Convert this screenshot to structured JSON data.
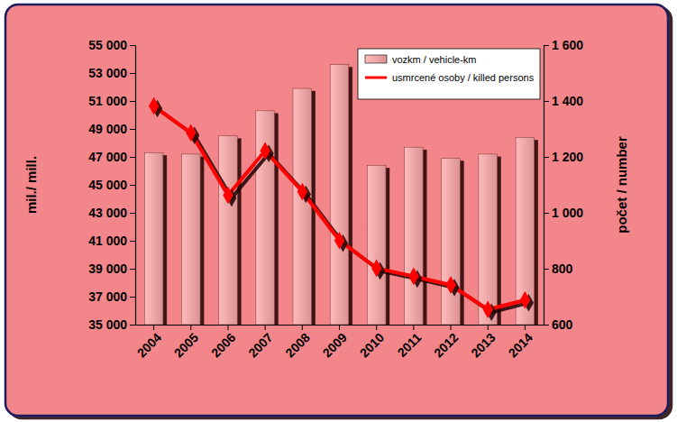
{
  "chart_data": {
    "type": "bar",
    "categories": [
      "2004",
      "2005",
      "2006",
      "2007",
      "2008",
      "2009",
      "2010",
      "2011",
      "2012",
      "2013",
      "2014"
    ],
    "series": [
      {
        "name": "vozkm / vehicle-km",
        "type": "bar",
        "color": "#f4a3a3",
        "values": [
          47300,
          47200,
          48500,
          50300,
          51900,
          53600,
          46400,
          47700,
          46900,
          47200,
          48400
        ]
      },
      {
        "name": "usmrcené osoby / killed persons",
        "type": "line",
        "color": "#ff0000",
        "marker": "diamond",
        "axis": "y2",
        "values": [
          1382,
          1286,
          1063,
          1222,
          1076,
          901,
          802,
          773,
          742,
          654,
          688
        ]
      }
    ],
    "ylabel": "mil./ mill.",
    "y2label": "počet / number",
    "ylim": [
      35000,
      55000
    ],
    "yticks": [
      {
        "value": 35000,
        "label": "35 000"
      },
      {
        "value": 37000,
        "label": "37 000"
      },
      {
        "value": 39000,
        "label": "39 000"
      },
      {
        "value": 41000,
        "label": "41 000"
      },
      {
        "value": 43000,
        "label": "43 000"
      },
      {
        "value": 45000,
        "label": "45 000"
      },
      {
        "value": 47000,
        "label": "47 000"
      },
      {
        "value": 49000,
        "label": "49 000"
      },
      {
        "value": 51000,
        "label": "51 000"
      },
      {
        "value": 53000,
        "label": "53 000"
      },
      {
        "value": 55000,
        "label": "55 000"
      }
    ],
    "y2lim": [
      600,
      1600
    ],
    "y2ticks": [
      600,
      800,
      {
        "value": 1000,
        "label": "1 000"
      },
      {
        "value": 1200,
        "label": "1 200"
      },
      {
        "value": 1400,
        "label": "1 400"
      },
      {
        "value": 1600,
        "label": "1 600"
      }
    ],
    "legend": "upper right"
  }
}
